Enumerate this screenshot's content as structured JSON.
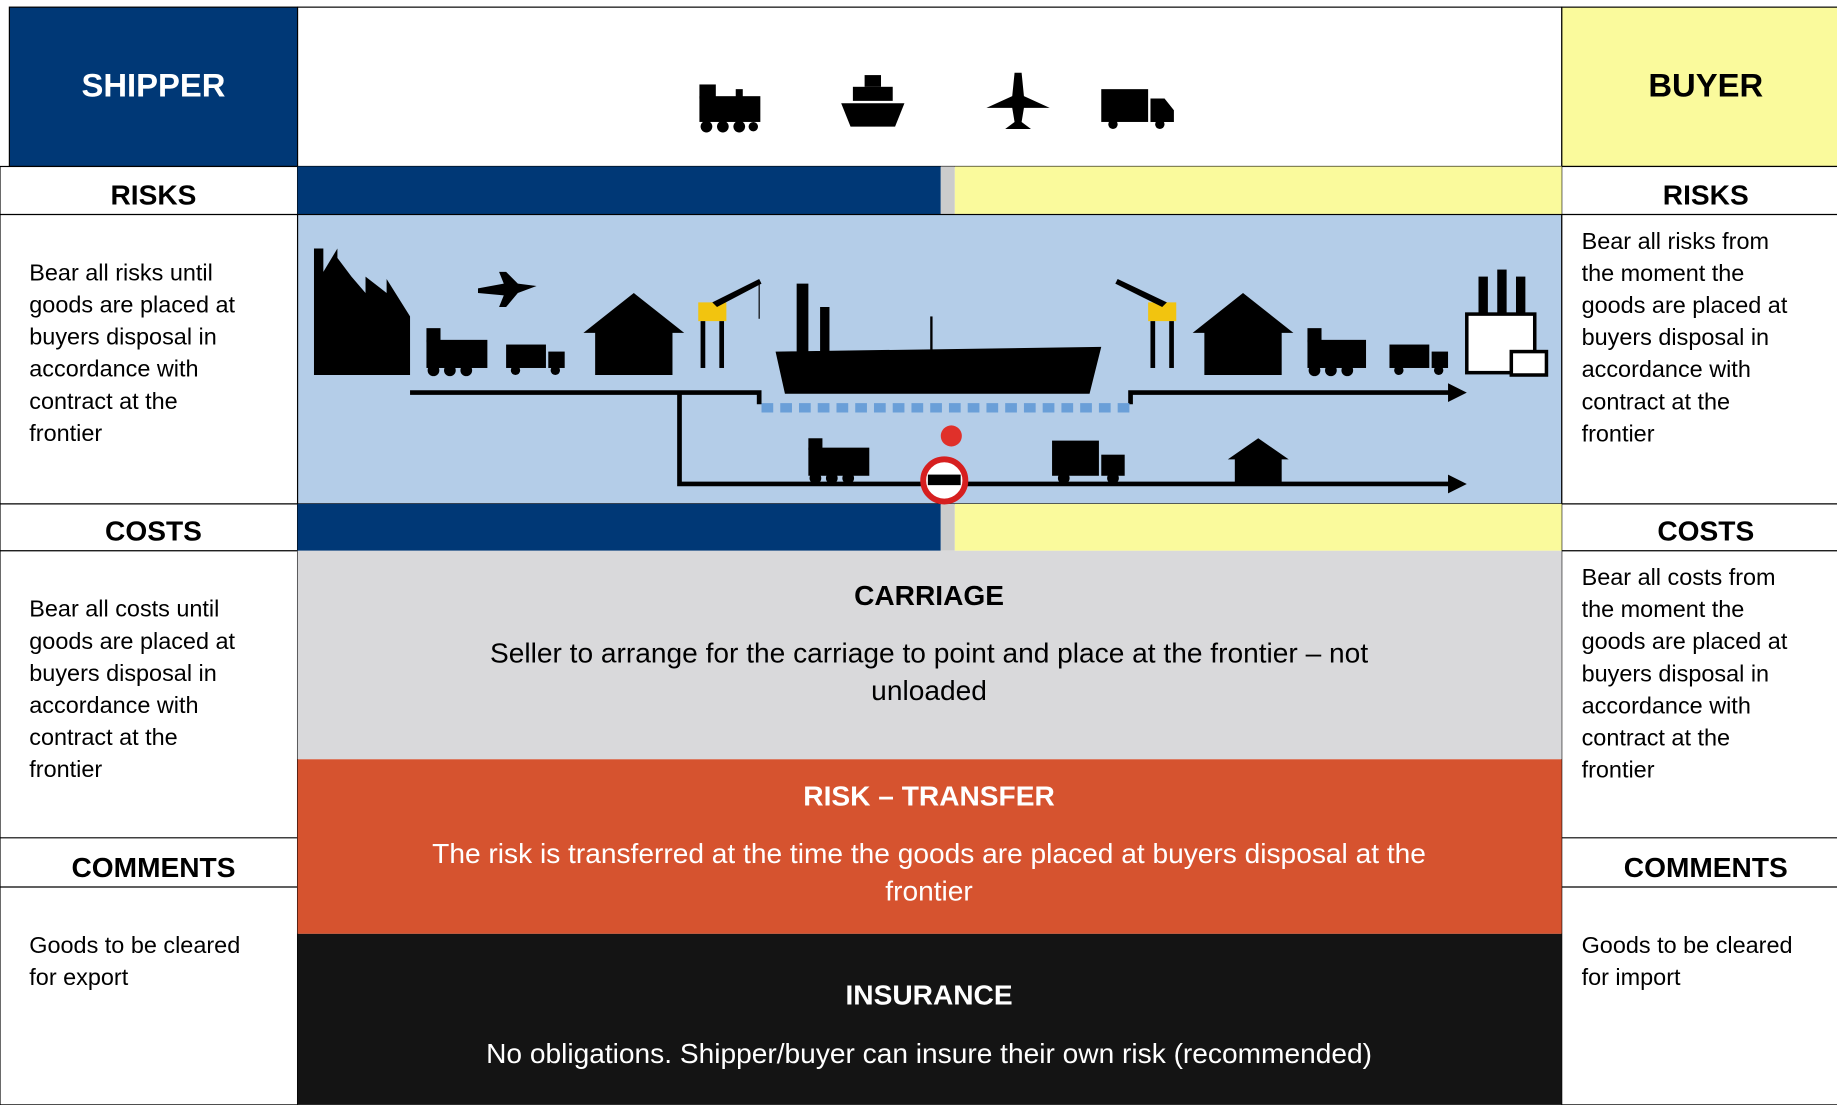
{
  "shipper": {
    "title": "SHIPPER",
    "risks": {
      "heading": "RISKS",
      "lines": [
        "Bear all risks until",
        "goods are placed at",
        "buyers disposal in",
        "accordance with",
        "contract at the",
        "frontier"
      ]
    },
    "costs": {
      "heading": "COSTS",
      "lines": [
        "Bear all costs until",
        "goods are placed at",
        "buyers disposal in",
        "accordance with",
        "contract at the",
        "frontier"
      ]
    },
    "comments": {
      "heading": "COMMENTS",
      "lines": [
        "Goods to be cleared",
        "for export"
      ]
    }
  },
  "buyer": {
    "title": "BUYER",
    "risks": {
      "heading": "RISKS",
      "lines": [
        "Bear all risks from",
        "the moment the",
        "goods are placed at",
        "buyers disposal in",
        "accordance with",
        "contract at the",
        "frontier"
      ]
    },
    "costs": {
      "heading": "COSTS",
      "lines": [
        "Bear all costs from",
        "the moment the",
        "goods are placed at",
        "buyers disposal in",
        "accordance with",
        "contract at the",
        "frontier"
      ]
    },
    "comments": {
      "heading": "COMMENTS",
      "lines": [
        "Goods to be cleared",
        "for import"
      ]
    }
  },
  "middle": {
    "carriage": {
      "heading": "CARRIAGE",
      "lines": [
        "Seller to arrange for the carriage to point and place at the frontier – not",
        "unloaded"
      ]
    },
    "risk_transfer": {
      "heading": "RISK – TRANSFER",
      "lines": [
        "The risk is transferred at the time the goods are placed at buyers disposal at the",
        "frontier"
      ]
    },
    "insurance": {
      "heading": "INSURANCE",
      "lines": [
        "No obligations. Shipper/buyer can insure their own risk (recommended)"
      ]
    }
  }
}
